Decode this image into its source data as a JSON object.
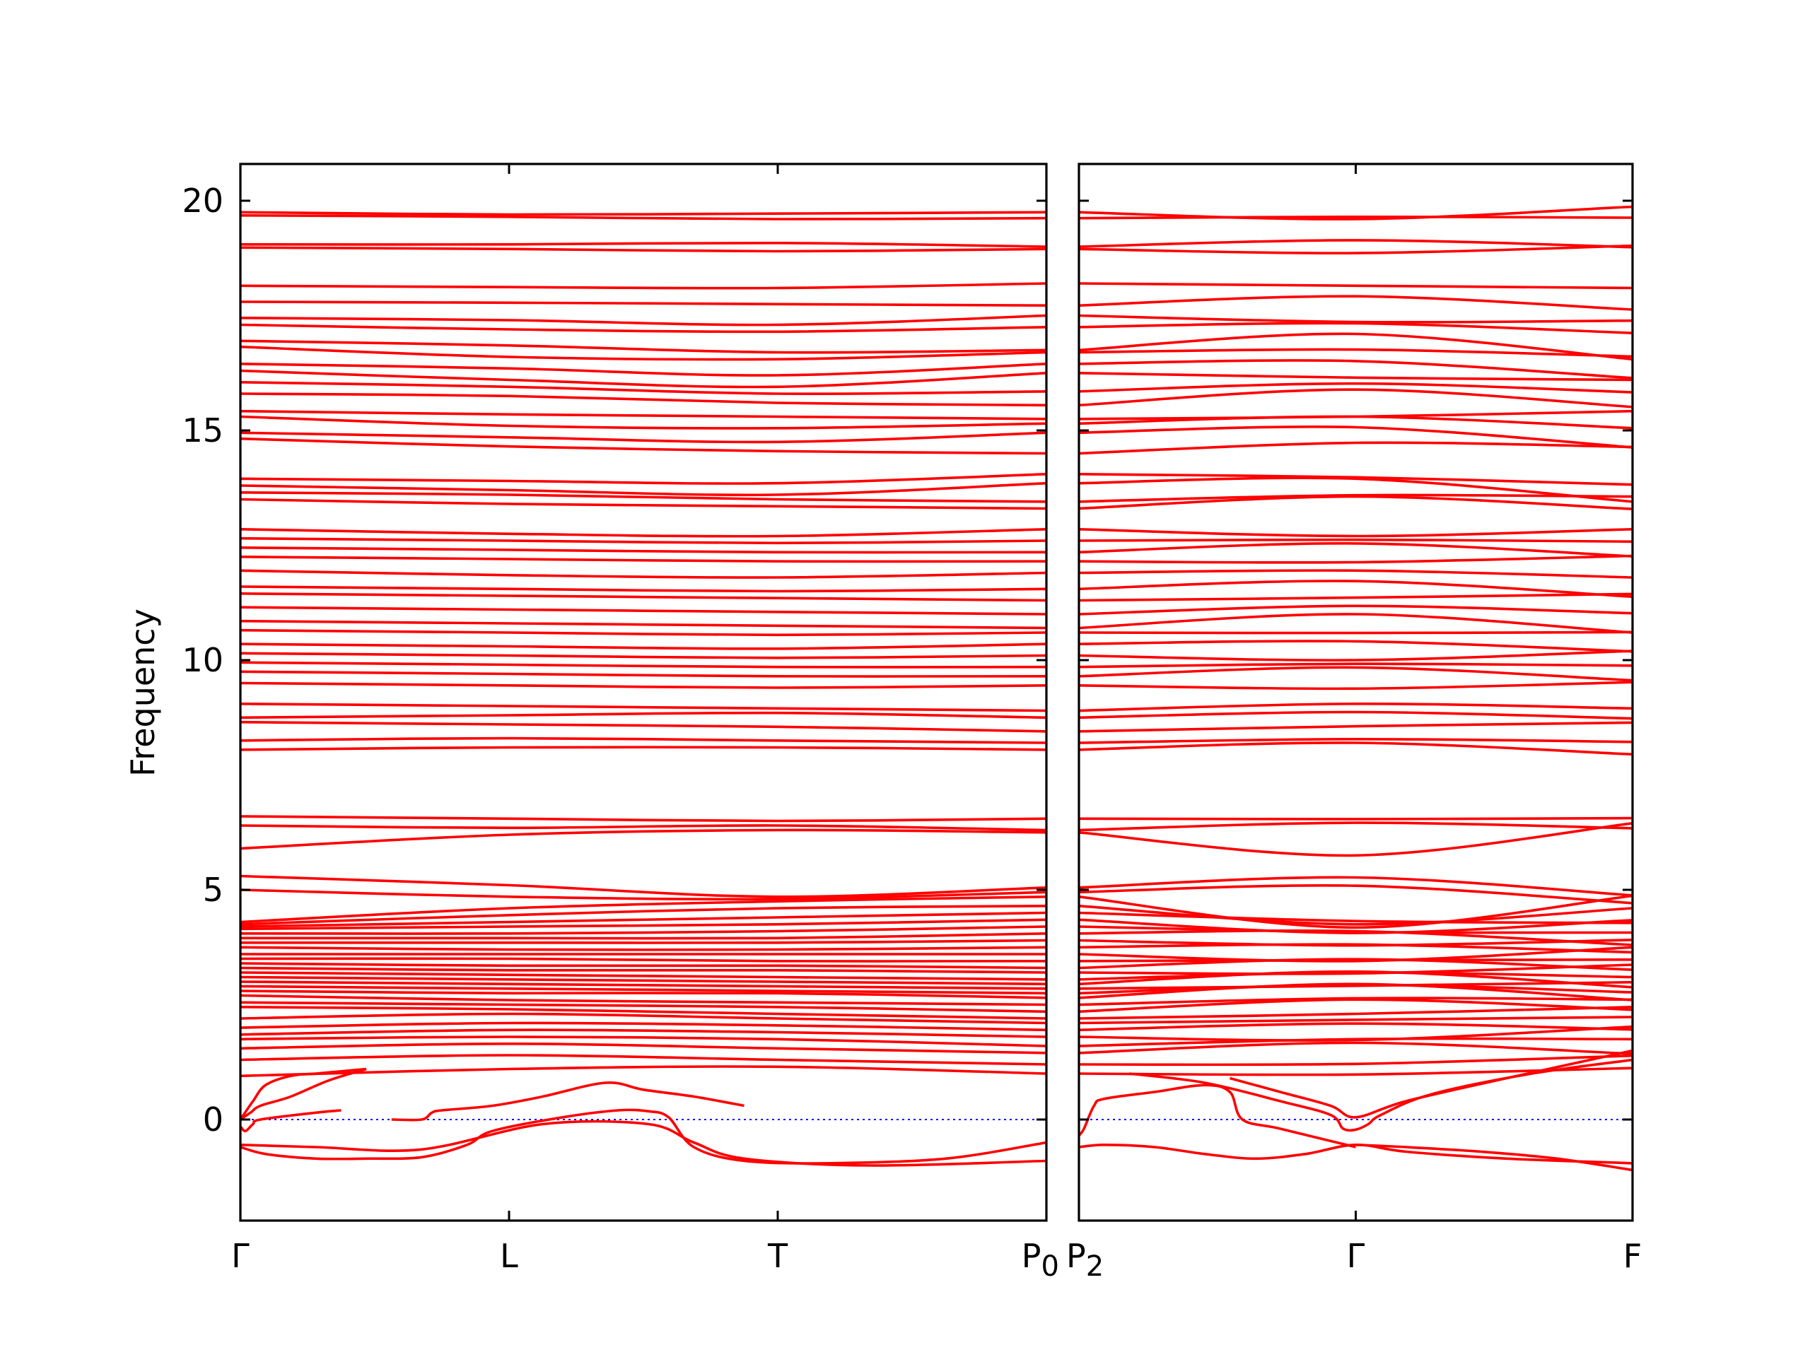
{
  "chart_data": {
    "type": "line",
    "ylabel": "Frequency",
    "ylim": [
      -2.2,
      20.8
    ],
    "yticks": [
      "0",
      "5",
      "10",
      "15",
      "20"
    ],
    "zero_line_color": "#0000ff",
    "band_color": "#ff0000",
    "panels": [
      {
        "ticks": [
          "Γ",
          "L",
          "T",
          "P"
        ],
        "tick_sub": {
          "3": "0"
        }
      },
      {
        "ticks": [
          "P",
          "Γ",
          "F"
        ],
        "tick_sub": {
          "0": "2"
        }
      }
    ],
    "bands_flat": [
      [
        19.75,
        19.7,
        19.72,
        19.75
      ],
      [
        19.68,
        19.65,
        19.6,
        19.62
      ],
      [
        19.05,
        19.05,
        19.08,
        19.0
      ],
      [
        18.98,
        18.95,
        18.9,
        18.95
      ],
      [
        18.15,
        18.12,
        18.1,
        18.2
      ],
      [
        17.8,
        17.78,
        17.75,
        17.72
      ],
      [
        17.45,
        17.4,
        17.3,
        17.5
      ],
      [
        17.3,
        17.2,
        17.15,
        17.25
      ],
      [
        16.95,
        16.85,
        16.7,
        16.75
      ],
      [
        16.82,
        16.6,
        16.55,
        16.7
      ],
      [
        16.45,
        16.35,
        16.2,
        16.45
      ],
      [
        16.3,
        16.1,
        15.95,
        16.25
      ],
      [
        16.05,
        15.95,
        15.8,
        15.85
      ],
      [
        15.8,
        15.75,
        15.6,
        15.55
      ],
      [
        15.42,
        15.35,
        15.3,
        15.25
      ],
      [
        15.3,
        15.1,
        15.05,
        15.15
      ],
      [
        14.95,
        14.85,
        14.75,
        14.95
      ],
      [
        14.82,
        14.65,
        14.55,
        14.5
      ],
      [
        13.95,
        13.9,
        13.85,
        14.05
      ],
      [
        13.8,
        13.7,
        13.6,
        13.85
      ],
      [
        13.65,
        13.6,
        13.5,
        13.45
      ],
      [
        13.5,
        13.4,
        13.35,
        13.3
      ],
      [
        12.85,
        12.75,
        12.7,
        12.85
      ],
      [
        12.65,
        12.6,
        12.55,
        12.6
      ],
      [
        12.45,
        12.4,
        12.35,
        12.35
      ],
      [
        12.25,
        12.2,
        12.15,
        12.15
      ],
      [
        11.95,
        11.85,
        11.8,
        11.9
      ],
      [
        11.6,
        11.55,
        11.5,
        11.55
      ],
      [
        11.45,
        11.4,
        11.35,
        11.3
      ],
      [
        11.15,
        11.1,
        11.05,
        11.0
      ],
      [
        10.85,
        10.8,
        10.75,
        10.7
      ],
      [
        10.65,
        10.6,
        10.55,
        10.6
      ],
      [
        10.35,
        10.3,
        10.25,
        10.35
      ],
      [
        10.15,
        10.1,
        10.05,
        10.1
      ],
      [
        9.95,
        9.9,
        9.85,
        9.85
      ],
      [
        9.75,
        9.7,
        9.65,
        9.65
      ],
      [
        9.5,
        9.45,
        9.4,
        9.45
      ],
      [
        9.05,
        9.0,
        8.95,
        8.9
      ],
      [
        8.75,
        8.8,
        8.85,
        8.75
      ],
      [
        8.65,
        8.6,
        8.55,
        8.45
      ],
      [
        8.25,
        8.3,
        8.25,
        8.2
      ],
      [
        8.05,
        8.1,
        8.1,
        8.05
      ],
      [
        6.6,
        6.55,
        6.5,
        6.55
      ],
      [
        6.4,
        6.35,
        6.4,
        6.3
      ],
      [
        5.9,
        6.2,
        6.3,
        6.25
      ],
      [
        5.3,
        5.1,
        4.85,
        5.05
      ],
      [
        5.0,
        4.85,
        4.8,
        4.95
      ],
      [
        4.3,
        4.6,
        4.75,
        4.85
      ],
      [
        4.25,
        4.45,
        4.6,
        4.65
      ],
      [
        4.2,
        4.3,
        4.4,
        4.5
      ],
      [
        4.15,
        4.2,
        4.25,
        4.35
      ],
      [
        4.05,
        4.05,
        4.1,
        4.2
      ],
      [
        3.95,
        3.95,
        3.95,
        4.05
      ],
      [
        3.85,
        3.85,
        3.85,
        3.9
      ],
      [
        3.75,
        3.7,
        3.7,
        3.75
      ],
      [
        3.6,
        3.6,
        3.6,
        3.6
      ],
      [
        3.5,
        3.5,
        3.45,
        3.45
      ],
      [
        3.4,
        3.35,
        3.35,
        3.3
      ],
      [
        3.3,
        3.25,
        3.25,
        3.2
      ],
      [
        3.2,
        3.15,
        3.1,
        3.05
      ],
      [
        3.1,
        3.05,
        3.0,
        2.95
      ],
      [
        3.0,
        2.95,
        2.9,
        2.85
      ],
      [
        2.9,
        2.85,
        2.8,
        2.75
      ],
      [
        2.8,
        2.75,
        2.75,
        2.65
      ],
      [
        2.7,
        2.6,
        2.55,
        2.5
      ],
      [
        2.55,
        2.5,
        2.45,
        2.35
      ],
      [
        2.45,
        2.4,
        2.3,
        2.2
      ],
      [
        2.2,
        2.3,
        2.2,
        2.1
      ],
      [
        2.0,
        2.1,
        2.05,
        1.95
      ],
      [
        1.85,
        1.95,
        1.9,
        1.8
      ],
      [
        1.75,
        1.8,
        1.75,
        1.6
      ],
      [
        1.55,
        1.65,
        1.55,
        1.45
      ],
      [
        1.3,
        1.4,
        1.3,
        1.2
      ],
      [
        0.95,
        1.1,
        1.15,
        1.0
      ]
    ],
    "series": [
      {
        "name": "",
        "panel": 0,
        "x": [
          0,
          0.05,
          0.1,
          0.2,
          0.3,
          0.4,
          0.5
        ],
        "y": [
          0.0,
          0.4,
          0.75,
          0.95,
          1.0,
          1.05,
          1.1
        ]
      },
      {
        "name": "",
        "panel": 0,
        "x": [
          0,
          0.04,
          0.08,
          0.2,
          0.35,
          0.5
        ],
        "y": [
          0.0,
          0.15,
          0.3,
          0.5,
          0.85,
          1.1
        ]
      },
      {
        "name": "",
        "panel": 0,
        "x": [
          0,
          0.02,
          0.05,
          0.08,
          0.3,
          0.4
        ],
        "y": [
          -0.15,
          -0.25,
          -0.1,
          0.0,
          0.15,
          0.2
        ]
      },
      {
        "name": "",
        "panel": 0,
        "x": [
          0,
          0.1,
          0.3,
          0.5,
          0.72,
          0.9,
          1.0,
          1.28,
          1.5,
          1.62,
          1.7,
          1.8,
          2.0,
          2.35,
          2.8,
          3.2
        ],
        "y": [
          -0.6,
          -0.75,
          -0.85,
          -0.85,
          -0.82,
          -0.55,
          -0.25,
          0.05,
          0.2,
          0.18,
          0.05,
          -0.6,
          -0.9,
          -0.95,
          -0.85,
          -0.5
        ]
      },
      {
        "name": "",
        "panel": 0,
        "x": [
          0,
          0.3,
          0.72,
          1.2,
          1.62,
          1.8,
          2.0,
          2.5,
          3.2
        ],
        "y": [
          -0.55,
          -0.6,
          -0.65,
          -0.1,
          -0.1,
          -0.5,
          -0.85,
          -1.0,
          -0.9
        ]
      },
      {
        "name": "",
        "panel": 0,
        "x": [
          0.6,
          0.72,
          0.76,
          0.8,
          1.0,
          1.2,
          1.45,
          1.6,
          1.8,
          2.0
        ],
        "y": [
          0.0,
          0.0,
          0.15,
          0.2,
          0.3,
          0.5,
          0.8,
          0.65,
          0.5,
          0.3
        ]
      },
      {
        "name": "",
        "panel": 1,
        "x": [
          0,
          0.02,
          0.06,
          0.1,
          0.3,
          0.5,
          0.6,
          0.65,
          0.8,
          1.1
        ],
        "y": [
          -0.35,
          -0.2,
          0.3,
          0.45,
          0.6,
          0.75,
          0.6,
          0.0,
          -0.2,
          -0.6
        ]
      },
      {
        "name": "",
        "panel": 1,
        "x": [
          0,
          0.1,
          0.3,
          0.5,
          0.7,
          0.9,
          1.1,
          1.3,
          1.7,
          2.2
        ],
        "y": [
          -0.6,
          -0.55,
          -0.6,
          -0.75,
          -0.85,
          -0.75,
          -0.55,
          -0.7,
          -0.85,
          -0.95
        ]
      },
      {
        "name": "",
        "panel": 1,
        "x": [
          1.1,
          1.3,
          1.6,
          1.9,
          2.2
        ],
        "y": [
          -0.55,
          -0.6,
          -0.7,
          -0.85,
          -1.1
        ]
      },
      {
        "name": "",
        "panel": 1,
        "x": [
          0.2,
          0.5,
          0.8,
          1.0,
          1.05,
          1.1,
          1.15,
          1.2,
          1.4,
          1.8,
          2.2
        ],
        "y": [
          1.0,
          0.8,
          0.4,
          0.1,
          -0.2,
          -0.22,
          -0.1,
          0.1,
          0.55,
          1.0,
          1.3
        ]
      },
      {
        "name": "",
        "panel": 1,
        "x": [
          0.6,
          0.8,
          1.0,
          1.1,
          1.3,
          1.7,
          2.2
        ],
        "y": [
          0.9,
          0.6,
          0.3,
          0.05,
          0.4,
          0.9,
          1.5
        ]
      }
    ]
  }
}
